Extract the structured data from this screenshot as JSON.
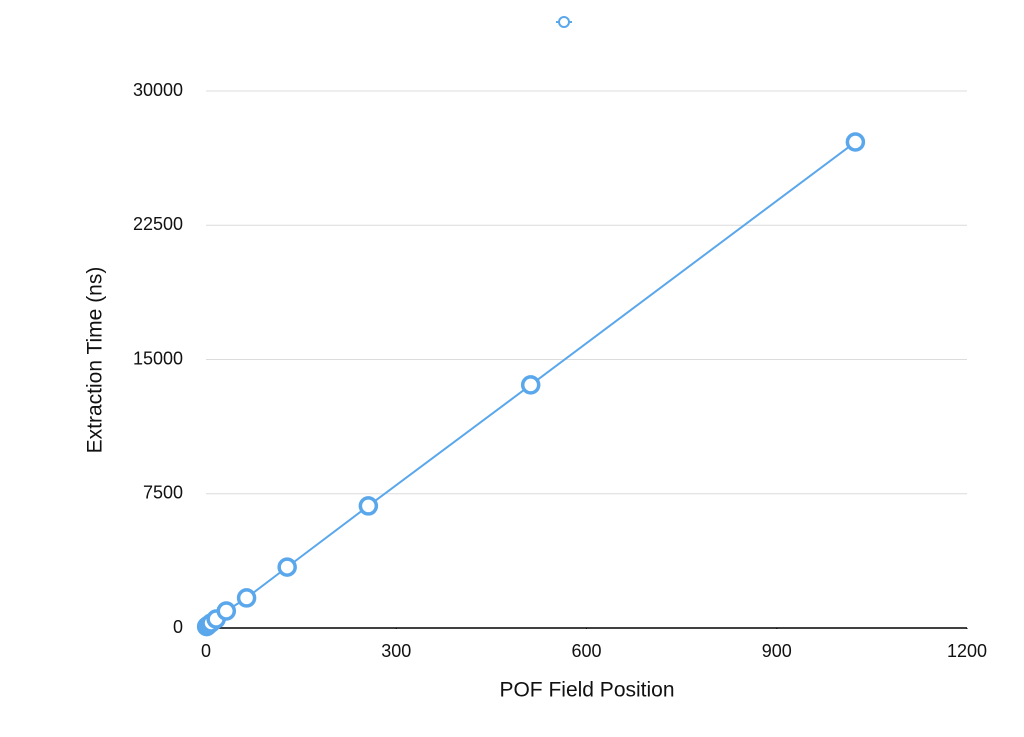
{
  "chart_data": {
    "type": "line",
    "x_label": "POF Field Position",
    "y_label": "Extraction Time (ns)",
    "series": [
      {
        "color": "#5aa7ec",
        "x": [
          1,
          2,
          4,
          8,
          16,
          32,
          64,
          128,
          256,
          512,
          1024
        ],
        "values": [
          80,
          110,
          170,
          280,
          500,
          950,
          1680,
          3400,
          6820,
          13580,
          27150
        ]
      }
    ],
    "xlim": [
      0,
      1200
    ],
    "xticks": [
      0,
      300,
      600,
      900,
      1200
    ],
    "ylim": [
      0,
      30000
    ],
    "yticks": [
      0,
      7500,
      15000,
      22500,
      30000
    ],
    "grid": true
  }
}
